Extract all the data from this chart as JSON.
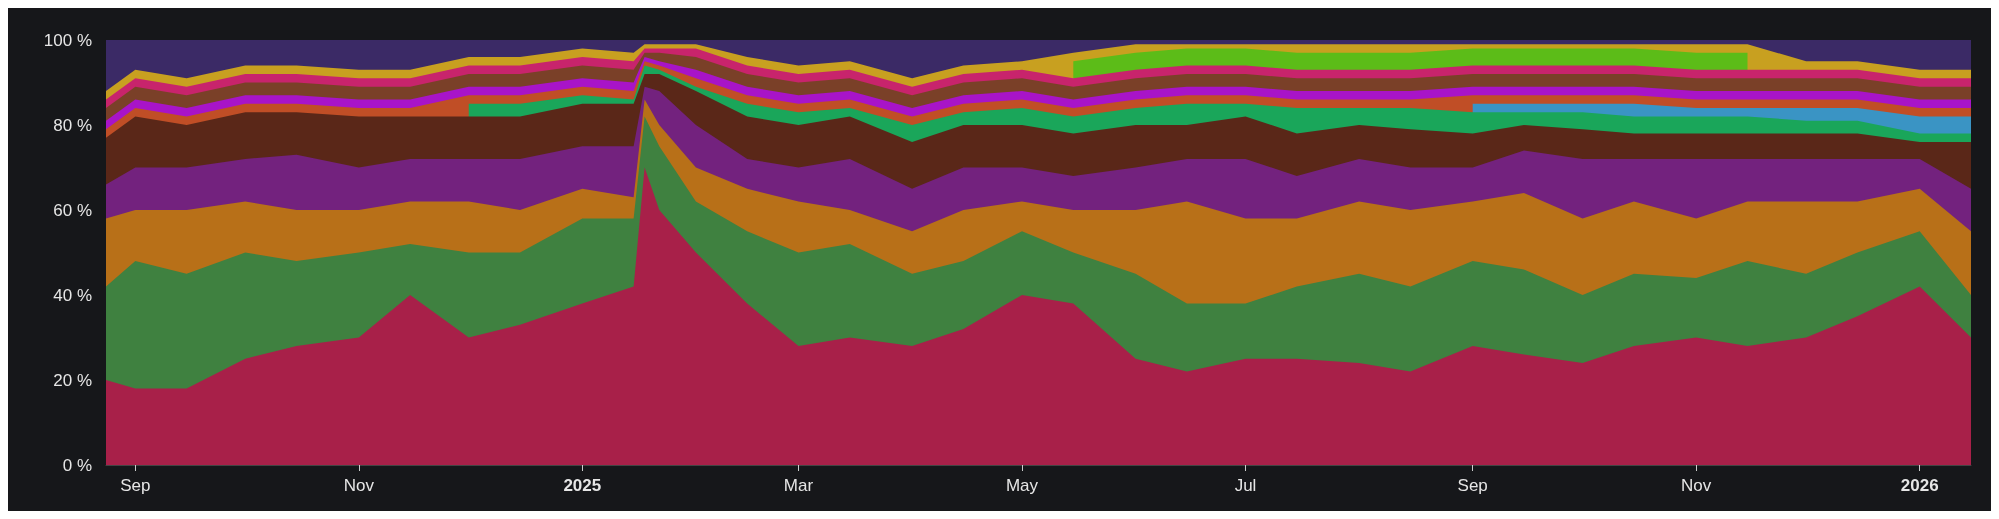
{
  "chart_data": {
    "type": "area",
    "stacked": true,
    "x": [
      "2024-08-24",
      "2024-09-01",
      "2024-09-15",
      "2024-10-01",
      "2024-10-15",
      "2024-11-01",
      "2024-11-15",
      "2024-12-01",
      "2024-12-15",
      "2025-01-01",
      "2025-01-15",
      "2025-01-18",
      "2025-01-22",
      "2025-02-01",
      "2025-02-15",
      "2025-03-01",
      "2025-03-15",
      "2025-04-01",
      "2025-04-15",
      "2025-05-01",
      "2025-05-15",
      "2025-06-01",
      "2025-06-15",
      "2025-07-01",
      "2025-07-15",
      "2025-08-01",
      "2025-08-15",
      "2025-09-01",
      "2025-09-15",
      "2025-10-01",
      "2025-10-15",
      "2025-11-01",
      "2025-11-15",
      "2025-12-01",
      "2025-12-15",
      "2026-01-01",
      "2026-01-15"
    ],
    "xlim": [
      "2024-08-24",
      "2026-01-15"
    ],
    "xticks": [
      {
        "value": "2024-09-01",
        "label": "Sep"
      },
      {
        "value": "2024-11-01",
        "label": "Nov"
      },
      {
        "value": "2025-01-01",
        "label": "2025"
      },
      {
        "value": "2025-03-01",
        "label": "Mar"
      },
      {
        "value": "2025-05-01",
        "label": "May"
      },
      {
        "value": "2025-07-01",
        "label": "Jul"
      },
      {
        "value": "2025-09-01",
        "label": "Sep"
      },
      {
        "value": "2025-11-01",
        "label": "Nov"
      },
      {
        "value": "2026-01-01",
        "label": "2026"
      }
    ],
    "ylim": [
      0,
      100
    ],
    "yticks": [
      {
        "value": 0,
        "label": "0 %"
      },
      {
        "value": 20,
        "label": "20 %"
      },
      {
        "value": 40,
        "label": "40 %"
      },
      {
        "value": 60,
        "label": "60 %"
      },
      {
        "value": 80,
        "label": "80 %"
      },
      {
        "value": 100,
        "label": "100 %"
      }
    ],
    "series": [
      {
        "color": "#a82049",
        "values": [
          20,
          18,
          18,
          25,
          28,
          30,
          40,
          30,
          33,
          38,
          42,
          70,
          60,
          50,
          38,
          28,
          30,
          28,
          32,
          40,
          38,
          25,
          22,
          25,
          25,
          24,
          22,
          28,
          26,
          24,
          28,
          30,
          28,
          30,
          35,
          42,
          30
        ]
      },
      {
        "color": "#3f8140",
        "values": [
          22,
          30,
          27,
          25,
          20,
          20,
          12,
          20,
          17,
          20,
          16,
          12,
          15,
          12,
          17,
          22,
          22,
          17,
          16,
          15,
          12,
          20,
          16,
          13,
          17,
          21,
          20,
          20,
          20,
          16,
          17,
          14,
          20,
          15,
          15,
          13,
          10
        ]
      },
      {
        "color": "#b87018",
        "values": [
          16,
          12,
          15,
          12,
          12,
          10,
          10,
          12,
          10,
          7,
          5,
          4,
          5,
          8,
          10,
          12,
          8,
          10,
          12,
          7,
          10,
          15,
          24,
          20,
          16,
          17,
          18,
          14,
          18,
          18,
          17,
          14,
          14,
          17,
          12,
          10,
          15
        ]
      },
      {
        "color": "#73227e",
        "values": [
          8,
          10,
          10,
          10,
          13,
          10,
          10,
          10,
          12,
          10,
          12,
          3,
          8,
          10,
          7,
          8,
          12,
          10,
          10,
          8,
          8,
          10,
          10,
          14,
          10,
          10,
          10,
          8,
          10,
          14,
          10,
          14,
          10,
          10,
          10,
          7,
          10
        ]
      },
      {
        "color": "#5a2718",
        "values": [
          11,
          12,
          10,
          11,
          10,
          12,
          10,
          10,
          10,
          10,
          10,
          3,
          4,
          8,
          10,
          10,
          10,
          11,
          10,
          10,
          10,
          10,
          8,
          10,
          10,
          8,
          9,
          8,
          6,
          7,
          6,
          6,
          6,
          6,
          6,
          4,
          11
        ]
      },
      {
        "color": "#1aa65a",
        "values": [
          null,
          null,
          null,
          null,
          null,
          null,
          null,
          3,
          3,
          2,
          1,
          2,
          1,
          1,
          3,
          3,
          2,
          4,
          3,
          4,
          4,
          4,
          5,
          3,
          6,
          4,
          5,
          5,
          3,
          4,
          4,
          4,
          4,
          3,
          3,
          2,
          2
        ]
      },
      {
        "color": "#3a94c4",
        "values": [
          null,
          null,
          null,
          null,
          null,
          null,
          null,
          null,
          null,
          null,
          null,
          null,
          null,
          null,
          null,
          null,
          null,
          null,
          null,
          null,
          null,
          null,
          null,
          null,
          null,
          null,
          null,
          2,
          2,
          2,
          3,
          2,
          2,
          3,
          3,
          4,
          4
        ]
      },
      {
        "color": "#c04e26",
        "values": [
          2,
          2,
          2,
          2,
          2,
          2,
          2,
          2,
          2,
          2,
          2,
          1,
          1,
          2,
          2,
          2,
          2,
          2,
          2,
          2,
          2,
          2,
          2,
          2,
          2,
          2,
          2,
          2,
          2,
          2,
          2,
          2,
          2,
          2,
          2,
          2,
          2
        ]
      },
      {
        "color": "#a814c8",
        "values": [
          2,
          2,
          2,
          2,
          2,
          2,
          2,
          2,
          2,
          2,
          2,
          1,
          1,
          2,
          2,
          2,
          2,
          2,
          2,
          2,
          2,
          2,
          2,
          2,
          2,
          2,
          2,
          2,
          2,
          2,
          2,
          2,
          2,
          2,
          2,
          2,
          2
        ]
      },
      {
        "color": "#7a4028",
        "values": [
          3,
          3,
          3,
          3,
          3,
          3,
          3,
          3,
          3,
          3,
          3,
          1,
          2,
          3,
          3,
          3,
          3,
          3,
          3,
          3,
          3,
          3,
          3,
          3,
          3,
          3,
          3,
          3,
          3,
          3,
          3,
          3,
          3,
          3,
          3,
          3,
          3
        ]
      },
      {
        "color": "#c8246c",
        "values": [
          2,
          2,
          2,
          2,
          2,
          2,
          2,
          2,
          2,
          2,
          2,
          1,
          1,
          2,
          2,
          2,
          2,
          2,
          2,
          2,
          2,
          2,
          2,
          2,
          2,
          2,
          2,
          2,
          2,
          2,
          2,
          2,
          2,
          2,
          2,
          2,
          2
        ]
      },
      {
        "color": "#5cbc18",
        "values": [
          null,
          null,
          null,
          null,
          null,
          null,
          null,
          null,
          null,
          null,
          null,
          null,
          null,
          null,
          null,
          null,
          null,
          null,
          null,
          null,
          4,
          4,
          4,
          4,
          4,
          4,
          4,
          4,
          4,
          4,
          4,
          4,
          4,
          null,
          null,
          null,
          null
        ]
      },
      {
        "color": "#c8a020",
        "values": [
          2,
          2,
          2,
          2,
          2,
          2,
          2,
          2,
          2,
          2,
          2,
          1,
          1,
          1,
          2,
          2,
          2,
          2,
          2,
          2,
          2,
          2,
          1,
          1,
          2,
          2,
          2,
          1,
          1,
          1,
          1,
          2,
          2,
          2,
          2,
          2,
          2
        ]
      },
      {
        "color": "#3b2a66",
        "values": [
          12,
          7,
          9,
          6,
          6,
          7,
          7,
          4,
          4,
          2,
          3,
          1,
          1,
          1,
          4,
          6,
          5,
          9,
          6,
          5,
          3,
          1,
          1,
          1,
          1,
          1,
          1,
          1,
          1,
          1,
          1,
          1,
          1,
          5,
          5,
          7,
          7
        ]
      }
    ]
  }
}
